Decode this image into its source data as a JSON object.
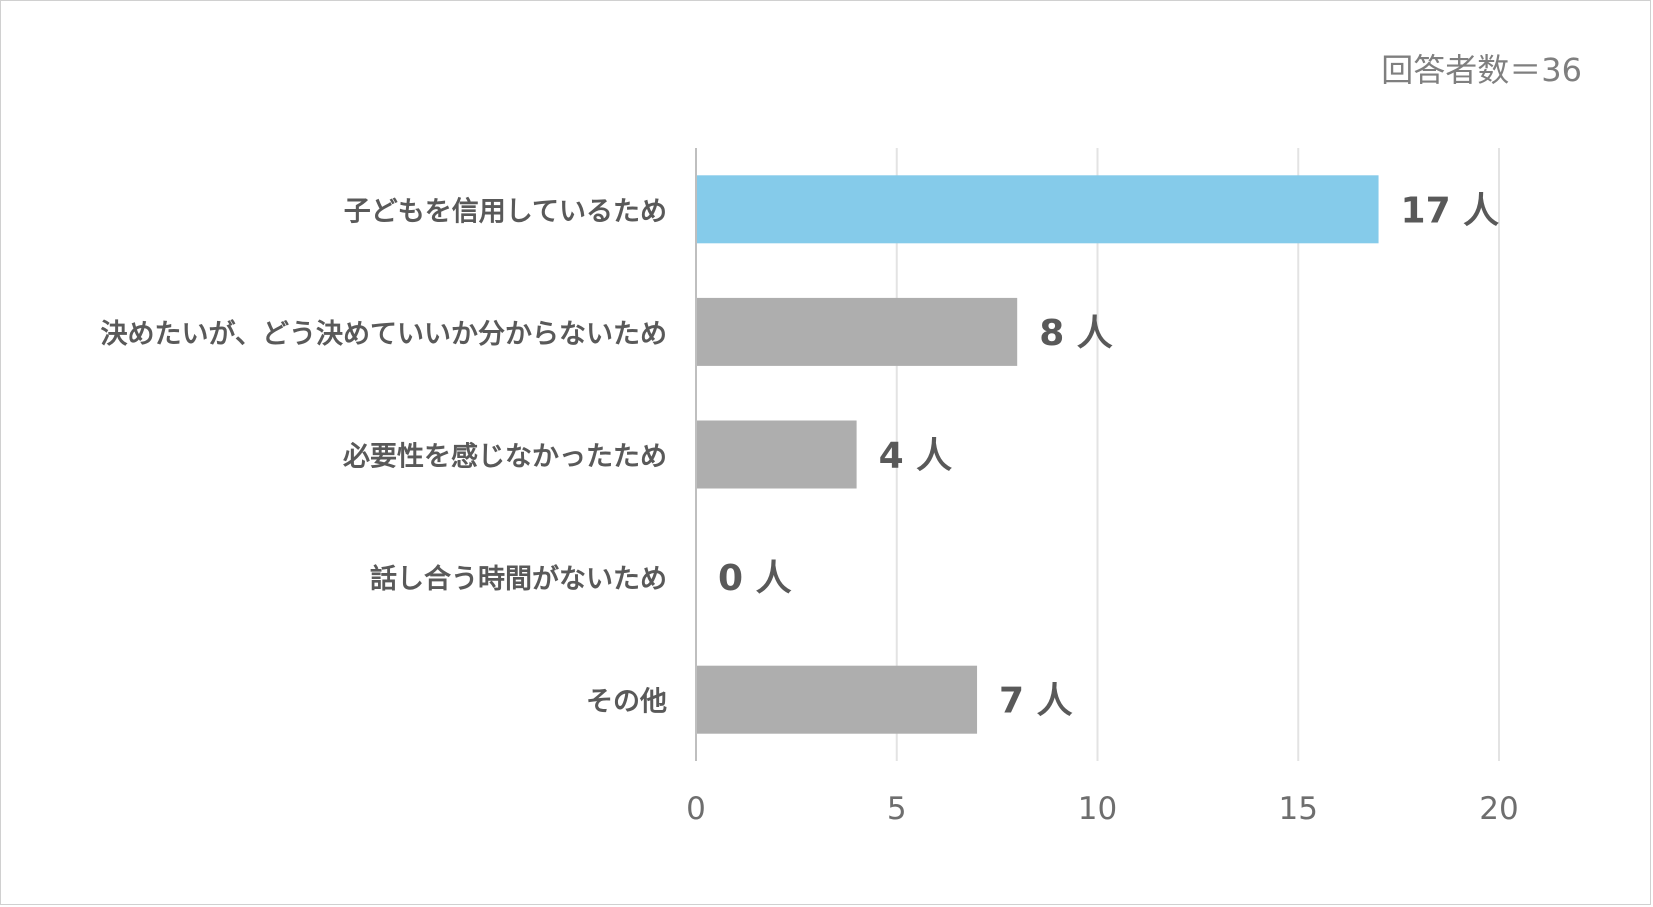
{
  "header": {
    "respondents_label": "回答者数＝36"
  },
  "chart_data": {
    "type": "bar",
    "orientation": "horizontal",
    "categories": [
      "子どもを信用しているため",
      "決めたいが、どう決めていいか分からないため",
      "必要性を感じなかったため",
      "話し合う時間がないため",
      "その他"
    ],
    "values": [
      17,
      8,
      4,
      0,
      7
    ],
    "data_labels": [
      "17 人",
      "8 人",
      "4 人",
      "0 人",
      "7 人"
    ],
    "xlim": [
      0,
      20
    ],
    "xticks": [
      0,
      5,
      10,
      15,
      20
    ],
    "grid": true,
    "legend": "none",
    "colors": {
      "highlight": "#85CBEA",
      "default": "#AEAEAE",
      "grid": "#E3E3E3",
      "axis": "#BFBFBF",
      "text": "#595959",
      "tick": "#6E6E6E"
    },
    "highlight_index": 0
  }
}
